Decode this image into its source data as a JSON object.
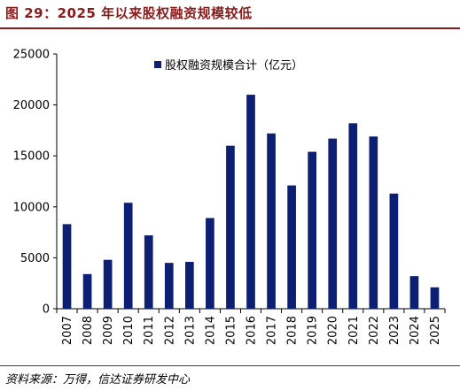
{
  "figure": {
    "title": "图 29：2025 年以来股权融资规模较低",
    "source": "资料来源：万得，信达证券研发中心"
  },
  "colors": {
    "bar": "#0d1f73",
    "accent": "#8a1b1b",
    "axis": "#000000"
  },
  "chart_data": {
    "type": "bar",
    "categories": [
      "2007",
      "2008",
      "2009",
      "2010",
      "2011",
      "2012",
      "2013",
      "2014",
      "2015",
      "2016",
      "2017",
      "2018",
      "2019",
      "2020",
      "2021",
      "2022",
      "2023",
      "2024",
      "2025"
    ],
    "series": [
      {
        "name": "股权融资规模合计（亿元）",
        "values": [
          8300,
          3400,
          4800,
          10400,
          7200,
          4500,
          4600,
          8900,
          16000,
          21000,
          17200,
          12100,
          15400,
          16700,
          18200,
          16900,
          11300,
          3200,
          2100
        ]
      }
    ],
    "y_ticks": [
      "0",
      "5000",
      "10000",
      "15000",
      "20000",
      "25000"
    ],
    "ylim": [
      0,
      25000
    ],
    "legend_position": "top-center",
    "grid": false
  }
}
